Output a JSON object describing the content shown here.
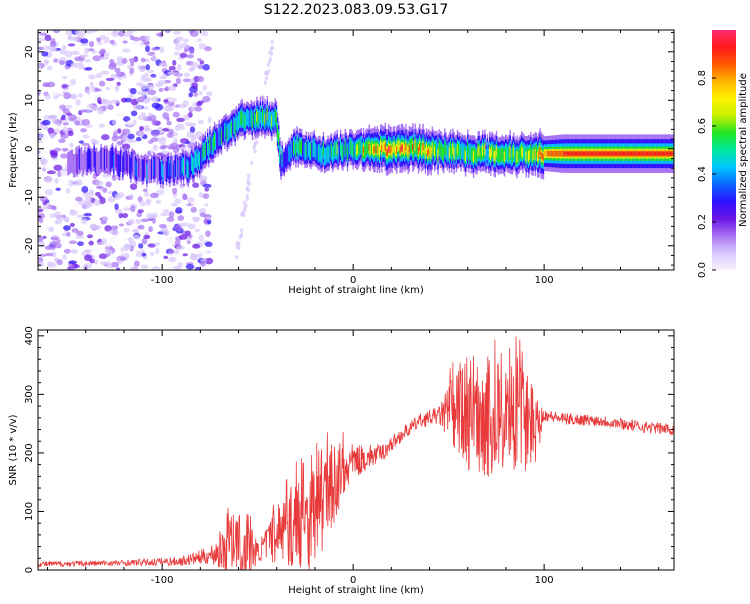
{
  "title": "S122.2023.083.09.53.G17",
  "colors": {
    "signal": "#e83a3a",
    "spectral_ramp": [
      "#f6f2fe",
      "#d9c7fb",
      "#a874f3",
      "#6a14e6",
      "#2b10ff",
      "#0a66ff",
      "#00c8ff",
      "#00e8a0",
      "#22e622",
      "#c6ef00",
      "#fff200",
      "#ffb400",
      "#ff5a00",
      "#ff1a1a",
      "#ff2a6e"
    ]
  },
  "chart_data": [
    {
      "type": "heatmap",
      "xlabel": "Height of straight line (km)",
      "ylabel": "Frequency (Hz)",
      "xlim": [
        -165,
        168
      ],
      "ylim": [
        -25,
        24.5
      ],
      "xticks": [
        -100,
        0,
        100
      ],
      "yticks": [
        -20,
        -10,
        0,
        10,
        20
      ],
      "colorbar": {
        "label": "Normalized spectral amplitude",
        "range": [
          0,
          1
        ],
        "ticks": [
          0.0,
          0.2,
          0.4,
          0.6,
          0.8
        ]
      },
      "ridge": [
        {
          "x": -150,
          "y": -3,
          "a": 0.1
        },
        {
          "x": -130,
          "y": -2,
          "a": 0.2
        },
        {
          "x": -110,
          "y": -4,
          "a": 0.25
        },
        {
          "x": -95,
          "y": -4.5,
          "a": 0.25
        },
        {
          "x": -85,
          "y": -3.5,
          "a": 0.4
        },
        {
          "x": -78,
          "y": -1,
          "a": 0.45
        },
        {
          "x": -70,
          "y": 2.5,
          "a": 0.45
        },
        {
          "x": -60,
          "y": 5.5,
          "a": 0.5
        },
        {
          "x": -48,
          "y": 6.5,
          "a": 0.55
        },
        {
          "x": -40,
          "y": 6,
          "a": 0.5
        },
        {
          "x": -38,
          "y": -3,
          "a": 0.35
        },
        {
          "x": -30,
          "y": 0.5,
          "a": 0.4
        },
        {
          "x": -15,
          "y": -1,
          "a": 0.45
        },
        {
          "x": 0,
          "y": 0,
          "a": 0.55
        },
        {
          "x": 15,
          "y": 0,
          "a": 0.85
        },
        {
          "x": 30,
          "y": 0,
          "a": 0.8
        },
        {
          "x": 50,
          "y": -0.5,
          "a": 0.6
        },
        {
          "x": 70,
          "y": -1,
          "a": 0.6
        },
        {
          "x": 90,
          "y": -1,
          "a": 0.65
        },
        {
          "x": 110,
          "y": -1,
          "a": 0.95
        },
        {
          "x": 140,
          "y": -1,
          "a": 0.95
        },
        {
          "x": 168,
          "y": -1,
          "a": 0.95
        }
      ]
    },
    {
      "type": "line",
      "xlabel": "Height of straight line (km)",
      "ylabel": "SNR (10 * v/v)",
      "xlim": [
        -165,
        168
      ],
      "ylim": [
        0,
        410
      ],
      "xticks": [
        -100,
        0,
        100
      ],
      "yticks": [
        0,
        100,
        200,
        300,
        400
      ],
      "envelope": {
        "x": [
          -165,
          -120,
          -90,
          -75,
          -65,
          -55,
          -50,
          -40,
          -30,
          -20,
          -10,
          0,
          15,
          25,
          35,
          45,
          55,
          65,
          75,
          85,
          95,
          100,
          110,
          130,
          150,
          168
        ],
        "center": [
          10,
          12,
          15,
          25,
          40,
          40,
          30,
          60,
          80,
          90,
          150,
          185,
          200,
          230,
          255,
          265,
          265,
          265,
          255,
          265,
          250,
          265,
          258,
          255,
          245,
          240
        ],
        "spread": [
          5,
          5,
          8,
          15,
          50,
          60,
          15,
          50,
          80,
          90,
          70,
          30,
          15,
          12,
          12,
          15,
          90,
          100,
          100,
          100,
          80,
          10,
          10,
          10,
          10,
          10
        ]
      }
    }
  ]
}
